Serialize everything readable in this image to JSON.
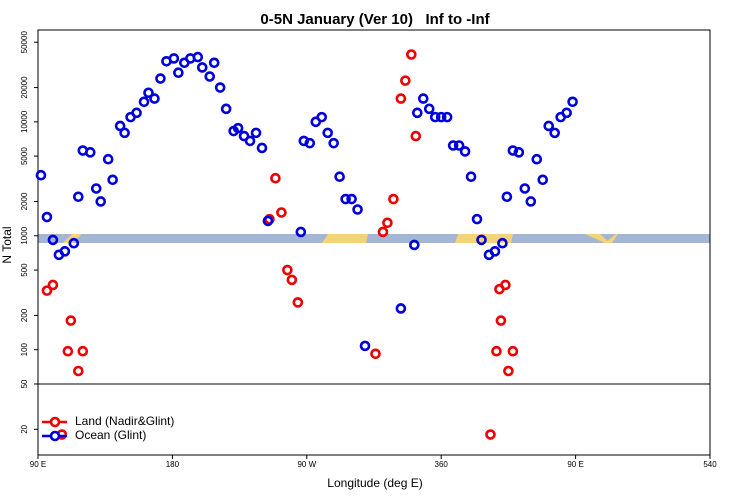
{
  "chart_data": {
    "type": "scatter",
    "title": "0-5N January (Ver 10)   Inf to -Inf",
    "x_label": "Longitude (deg E)",
    "y_label": "N Total",
    "log_y": true,
    "xlim": [
      90,
      540
    ],
    "ylim": [
      11.9,
      64000
    ],
    "xticks": [
      {
        "value": 90,
        "label": "90 E"
      },
      180,
      {
        "value": 270,
        "label": "90 W"
      },
      360,
      {
        "value": 450,
        "label": "90 E"
      },
      540
    ],
    "yticks": [
      20,
      50,
      100,
      200,
      500,
      1000,
      2000,
      5000,
      10000,
      20000,
      50000
    ],
    "legend": "bottom-left",
    "series": [
      {
        "name": "Land (Nadir&Glint)",
        "color": "#ee0000",
        "x": [
          96,
          100,
          106,
          110,
          112,
          117,
          120,
          245,
          249,
          253,
          257,
          260,
          264,
          316,
          321,
          324,
          328,
          333,
          336,
          340,
          343,
          393,
          397,
          399,
          400,
          403,
          405,
          408
        ],
        "values": [
          330,
          370,
          18,
          97,
          180,
          65,
          97,
          1400,
          3200,
          1600,
          500,
          410,
          260,
          92,
          1080,
          1300,
          2100,
          16000,
          23000,
          39000,
          7500,
          18,
          97,
          340,
          180,
          370,
          65,
          97
        ]
      },
      {
        "name": "Ocean (Glint)",
        "color": "#0000dd",
        "x": [
          92,
          96,
          100,
          104,
          108,
          114,
          117,
          120,
          125,
          129,
          132,
          137,
          140,
          145,
          148,
          152,
          156,
          161,
          164,
          168,
          172,
          176,
          181,
          184,
          188,
          192,
          197,
          200,
          205,
          208,
          212,
          216,
          221,
          224,
          228,
          232,
          236,
          240,
          244,
          266,
          268,
          272,
          276,
          280,
          284,
          288,
          292,
          296,
          300,
          304,
          309,
          333,
          342,
          344,
          348,
          352,
          356,
          360,
          364,
          368,
          372,
          376,
          380,
          384,
          387,
          392,
          396,
          401,
          404,
          408,
          412,
          416,
          420,
          424,
          428,
          432,
          436,
          440,
          444,
          448
        ],
        "values": [
          3400,
          1460,
          920,
          680,
          730,
          860,
          2200,
          5600,
          5400,
          2600,
          2000,
          4700,
          3100,
          9200,
          8000,
          11000,
          12000,
          15000,
          18000,
          16000,
          24000,
          34000,
          36000,
          27000,
          33000,
          36000,
          37000,
          30000,
          25000,
          33000,
          20000,
          13000,
          8300,
          8800,
          7500,
          6800,
          8000,
          5900,
          1350,
          1080,
          6800,
          6500,
          10000,
          11000,
          8000,
          6500,
          3300,
          2100,
          2100,
          1700,
          108,
          230,
          830,
          12000,
          16000,
          13000,
          11000,
          11000,
          11000,
          6200,
          6200,
          5500,
          3300,
          1400,
          920,
          680,
          730,
          860,
          2200,
          5600,
          5400,
          2600,
          2000,
          4700,
          3100,
          9200,
          8000,
          11000,
          12000,
          15000
        ]
      }
    ]
  }
}
